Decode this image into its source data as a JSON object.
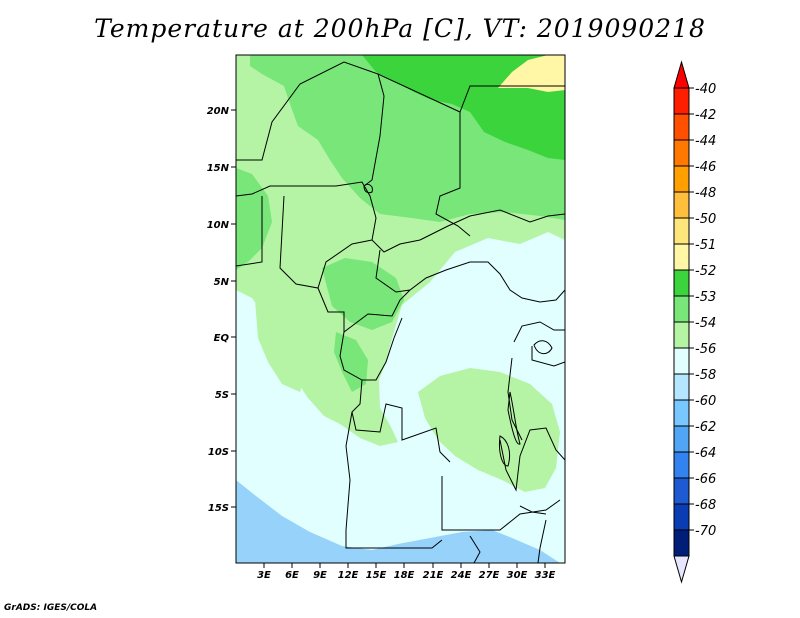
{
  "title": "Temperature at 200hPa [C], VT: 2019090218",
  "credit": "GrADS: IGES/COLA",
  "map": {
    "lat_labels": [
      "20N",
      "15N",
      "10N",
      "5N",
      "EQ",
      "5S",
      "10S",
      "15S"
    ],
    "lon_labels": [
      "3E",
      "6E",
      "9E",
      "12E",
      "15E",
      "18E",
      "21E",
      "24E",
      "27E",
      "30E",
      "33E"
    ],
    "colors": {
      "c53": "#b4f4a4",
      "c52": "#78e678",
      "c51": "#3cd43c",
      "c50": "#fff6a6",
      "c54": "#e1ffff",
      "c56": "#96d2fa"
    }
  },
  "colorbar": {
    "levels": [
      "-40",
      "-42",
      "-44",
      "-46",
      "-48",
      "-50",
      "-51",
      "-52",
      "-53",
      "-54",
      "-56",
      "-58",
      "-60",
      "-62",
      "-64",
      "-66",
      "-68",
      "-70"
    ],
    "colors": [
      "#ff1e00",
      "#ff5000",
      "#ff7800",
      "#ffa000",
      "#ffbe3c",
      "#ffe67a",
      "#fff6a6",
      "#3cd43c",
      "#78e678",
      "#b4f4a4",
      "#e1ffff",
      "#b4e6ff",
      "#78c8ff",
      "#50a5f5",
      "#3282f0",
      "#1e5ad2",
      "#0a3cb4",
      "#001e78"
    ],
    "top_arrow_color": "#ff0000",
    "bottom_arrow_color": "#e6e6ff"
  }
}
